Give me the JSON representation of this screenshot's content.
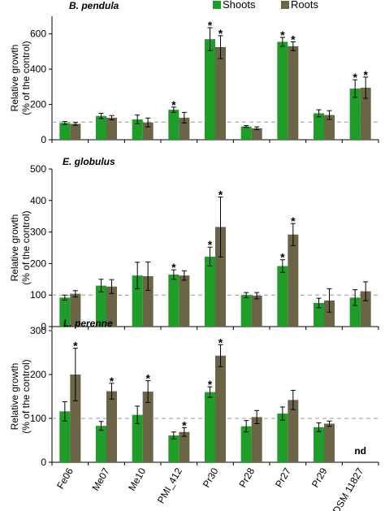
{
  "chart_data": {
    "type": "bar",
    "categories": [
      "Fe06",
      "Me07",
      "Me10",
      "PMI_412",
      "Pr30",
      "Pr28",
      "Pr27",
      "Pr29",
      "DSM 11827"
    ],
    "legend": {
      "placement": "top-center",
      "entries": [
        "Shoots",
        "Roots"
      ]
    },
    "colors": {
      "Shoots": "#1e9e28",
      "Roots": "#6b6446",
      "reference_line": "#999999"
    },
    "reference_line": 100,
    "panels": [
      {
        "title": "B. pendula",
        "ylabel_lines": [
          "Relative growth",
          "(% of the control)"
        ],
        "ylim": [
          0,
          700
        ],
        "yticks": [
          0,
          200,
          400,
          600
        ],
        "series": [
          {
            "name": "Shoots",
            "values": [
              95,
              135,
              115,
              170,
              570,
              75,
              555,
              150,
              290
            ],
            "errors": [
              8,
              15,
              25,
              15,
              65,
              5,
              25,
              20,
              50
            ]
          },
          {
            "name": "Roots",
            "values": [
              90,
              125,
              98,
              125,
              525,
              65,
              530,
              140,
              295
            ],
            "errors": [
              8,
              12,
              25,
              30,
              65,
              8,
              25,
              25,
              60
            ]
          }
        ],
        "significance": [
          {
            "category": "PMI_412",
            "series": "Shoots"
          },
          {
            "category": "Pr30",
            "series": "Shoots"
          },
          {
            "category": "Pr30",
            "series": "Roots"
          },
          {
            "category": "Pr27",
            "series": "Shoots"
          },
          {
            "category": "Pr27",
            "series": "Roots"
          },
          {
            "category": "DSM 11827",
            "series": "Shoots"
          },
          {
            "category": "DSM 11827",
            "series": "Roots"
          }
        ],
        "not_determined": []
      },
      {
        "title": "E. globulus",
        "ylabel_lines": [
          "Relative growth",
          "(% of the control)"
        ],
        "ylim": [
          0,
          500
        ],
        "yticks": [
          0,
          100,
          200,
          300,
          400,
          500
        ],
        "series": [
          {
            "name": "Shoots",
            "values": [
              92,
              130,
              162,
              165,
              222,
              100,
              192,
              75,
              92
            ],
            "errors": [
              8,
              20,
              42,
              15,
              30,
              8,
              20,
              15,
              25
            ]
          },
          {
            "name": "Roots",
            "values": [
              104,
              127,
              160,
              162,
              316,
              98,
              292,
              83,
              112
            ],
            "errors": [
              10,
              22,
              45,
              15,
              95,
              10,
              35,
              37,
              30
            ]
          }
        ],
        "significance": [
          {
            "category": "PMI_412",
            "series": "Shoots"
          },
          {
            "category": "Pr30",
            "series": "Shoots"
          },
          {
            "category": "Pr30",
            "series": "Roots"
          },
          {
            "category": "Pr27",
            "series": "Shoots"
          },
          {
            "category": "Pr27",
            "series": "Roots"
          }
        ],
        "not_determined": []
      },
      {
        "title": "L. perenne",
        "ylabel_lines": [
          "Relative growth",
          "(% of the control)"
        ],
        "ylim": [
          0,
          300
        ],
        "yticks": [
          0,
          100,
          200,
          300
        ],
        "series": [
          {
            "name": "Shoots",
            "values": [
              116,
              83,
              108,
              61,
              160,
              82,
              111,
              80,
              null
            ],
            "errors": [
              22,
              10,
              20,
              8,
              12,
              13,
              15,
              10,
              null
            ]
          },
          {
            "name": "Roots",
            "values": [
              200,
              162,
              161,
              69,
              243,
              103,
              142,
              88,
              null
            ],
            "errors": [
              60,
              18,
              25,
              10,
              25,
              15,
              22,
              6,
              null
            ]
          }
        ],
        "significance": [
          {
            "category": "Fe06",
            "series": "Roots"
          },
          {
            "category": "Me07",
            "series": "Roots"
          },
          {
            "category": "Me10",
            "series": "Roots"
          },
          {
            "category": "PMI_412",
            "series": "Roots"
          },
          {
            "category": "Pr30",
            "series": "Shoots"
          },
          {
            "category": "Pr30",
            "series": "Roots"
          }
        ],
        "not_determined": [
          {
            "category": "DSM 11827",
            "label": "nd"
          }
        ]
      }
    ]
  }
}
